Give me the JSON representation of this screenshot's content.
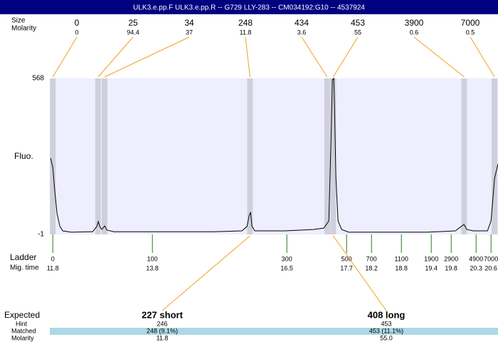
{
  "header": {
    "title": "ULK3.e.pp.F  ULK3.e.pp.R -- G729 LLY-283 -- CM034192:G10 -- 4537924"
  },
  "chart_data": {
    "type": "line",
    "y_label": "Fluo.",
    "ylim": [
      -1,
      568
    ],
    "yticks": [
      -1,
      568
    ],
    "xlim": [
      11.74,
      20.74
    ],
    "color": "#000000",
    "x": [
      11.757,
      11.8,
      11.843,
      11.886,
      11.943,
      12.0,
      12.171,
      12.6,
      12.686,
      12.714,
      12.743,
      12.786,
      12.843,
      12.886,
      13.029,
      15.029,
      15.6,
      15.7,
      15.743,
      15.771,
      15.8,
      15.857,
      16.457,
      17.029,
      17.243,
      17.343,
      17.386,
      17.414,
      17.443,
      17.457,
      17.486,
      17.529,
      17.6,
      17.743,
      19.314,
      19.886,
      20.0,
      20.057,
      20.114,
      20.243,
      20.529,
      20.6,
      20.671,
      20.74
    ],
    "values": [
      277,
      243,
      152,
      74,
      28,
      12,
      7,
      9,
      28,
      46,
      28,
      17,
      30,
      15,
      9,
      9,
      12,
      28,
      67,
      80,
      28,
      12,
      12,
      17,
      22,
      48,
      334,
      563,
      568,
      464,
      204,
      48,
      17,
      7,
      7,
      12,
      28,
      35,
      17,
      12,
      12,
      48,
      204,
      256
    ],
    "peaks": {
      "row_labels": [
        "Size",
        "Molarity"
      ],
      "sizes": [
        0,
        25,
        34,
        248,
        434,
        453,
        3900,
        7000
      ],
      "molarity": [
        0,
        94.4,
        37,
        11.8,
        3.6,
        55,
        0.6,
        0.5
      ],
      "times": [
        11.8,
        12.71,
        12.84,
        15.76,
        17.31,
        17.43,
        20.06,
        20.67
      ]
    },
    "ladder": {
      "label": "Ladder",
      "time_label": "Mig. time",
      "sizes": [
        0,
        100,
        300,
        500,
        700,
        1100,
        1900,
        2900,
        4900,
        7000
      ],
      "times": [
        11.8,
        13.8,
        16.5,
        17.7,
        18.2,
        18.8,
        19.4,
        19.8,
        20.3,
        20.6
      ]
    }
  },
  "expected": {
    "row_labels": [
      "Expected",
      "Hint",
      "Matched",
      "Molarity"
    ],
    "columns": [
      {
        "name": "227 short",
        "hint": 246,
        "matched": "248 (9.1%)",
        "molarity": "11.8"
      },
      {
        "name": "408 long",
        "hint": 453,
        "matched": "453 (11.1%)",
        "molarity": "55.0"
      }
    ]
  }
}
